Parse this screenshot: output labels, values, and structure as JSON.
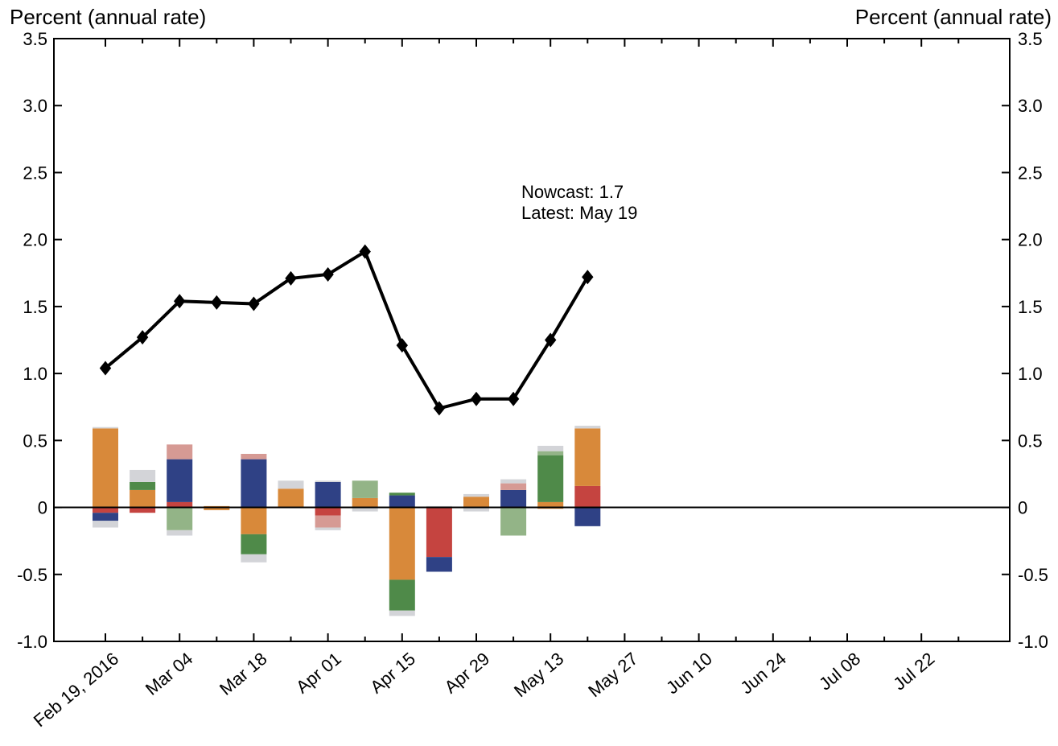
{
  "chart_data": {
    "type": "bar",
    "left_axis_label": "Percent (annual rate)",
    "right_axis_label": "Percent (annual rate)",
    "ylim": [
      -1.0,
      3.5
    ],
    "yticks": [
      "3.5",
      "3.0",
      "2.5",
      "2.0",
      "1.5",
      "1.0",
      "0.5",
      "0",
      "-0.5",
      "-1.0"
    ],
    "ytick_values": [
      3.5,
      3.0,
      2.5,
      2.0,
      1.5,
      1.0,
      0.5,
      0,
      -0.5,
      -1.0
    ],
    "x_tick_labels": [
      "Feb 19, 2016",
      "Mar 04",
      "Mar 18",
      "Apr 01",
      "Apr 15",
      "Apr 29",
      "May 13",
      "May 27",
      "Jun 10",
      "Jun 24",
      "Jul 08",
      "Jul 22"
    ],
    "week_count": 24,
    "annotation": {
      "line1": "Nowcast:  1.7",
      "line2": "Latest: May 19"
    },
    "colors": {
      "orange": "#d8893a",
      "navy": "#2f4185",
      "red": "#c54440",
      "pink": "#d69a94",
      "green": "#4f8a49",
      "lightgreen": "#93b487",
      "gray": "#d3d4d8",
      "line": "#000000"
    },
    "nowcast_line": [
      1.04,
      1.27,
      1.54,
      1.53,
      1.52,
      1.71,
      1.74,
      1.91,
      1.21,
      0.74,
      0.81,
      0.81,
      1.25,
      1.72
    ],
    "stacked_bars": [
      {
        "pos": [
          [
            "orange",
            0.59
          ],
          [
            "gray",
            0.01
          ]
        ],
        "neg": [
          [
            "red",
            -0.04
          ],
          [
            "navy",
            -0.06
          ],
          [
            "gray",
            -0.05
          ]
        ]
      },
      {
        "pos": [
          [
            "orange",
            0.13
          ],
          [
            "green",
            0.06
          ],
          [
            "gray",
            0.09
          ]
        ],
        "neg": [
          [
            "red",
            -0.04
          ]
        ]
      },
      {
        "pos": [
          [
            "red",
            0.04
          ],
          [
            "navy",
            0.32
          ],
          [
            "pink",
            0.11
          ]
        ],
        "neg": [
          [
            "lightgreen",
            -0.17
          ],
          [
            "gray",
            -0.04
          ]
        ]
      },
      {
        "pos": [
          [
            "orange",
            0.01
          ]
        ],
        "neg": [
          [
            "orange",
            -0.02
          ]
        ]
      },
      {
        "pos": [
          [
            "navy",
            0.36
          ],
          [
            "pink",
            0.04
          ]
        ],
        "neg": [
          [
            "orange",
            -0.2
          ],
          [
            "green",
            -0.15
          ],
          [
            "gray",
            -0.06
          ]
        ]
      },
      {
        "pos": [
          [
            "orange",
            0.14
          ],
          [
            "gray",
            0.06
          ]
        ],
        "neg": []
      },
      {
        "pos": [
          [
            "navy",
            0.19
          ],
          [
            "gray",
            0.01
          ]
        ],
        "neg": [
          [
            "red",
            -0.06
          ],
          [
            "pink",
            -0.09
          ],
          [
            "gray",
            -0.02
          ]
        ]
      },
      {
        "pos": [
          [
            "orange",
            0.07
          ],
          [
            "lightgreen",
            0.13
          ]
        ],
        "neg": [
          [
            "gray",
            -0.03
          ]
        ]
      },
      {
        "pos": [
          [
            "navy",
            0.09
          ],
          [
            "green",
            0.02
          ]
        ],
        "neg": [
          [
            "orange",
            -0.54
          ],
          [
            "green",
            -0.23
          ],
          [
            "gray",
            -0.04
          ]
        ]
      },
      {
        "pos": [
          [
            "gray",
            0.01
          ]
        ],
        "neg": [
          [
            "red",
            -0.37
          ],
          [
            "navy",
            -0.11
          ]
        ]
      },
      {
        "pos": [
          [
            "orange",
            0.08
          ],
          [
            "gray",
            0.02
          ]
        ],
        "neg": [
          [
            "gray",
            -0.03
          ]
        ]
      },
      {
        "pos": [
          [
            "navy",
            0.13
          ],
          [
            "pink",
            0.05
          ],
          [
            "gray",
            0.03
          ]
        ],
        "neg": [
          [
            "lightgreen",
            -0.21
          ]
        ]
      },
      {
        "pos": [
          [
            "orange",
            0.04
          ],
          [
            "green",
            0.35
          ],
          [
            "lightgreen",
            0.03
          ],
          [
            "gray",
            0.04
          ]
        ],
        "neg": [
          [
            "orange",
            -0.01
          ]
        ]
      },
      {
        "pos": [
          [
            "red",
            0.16
          ],
          [
            "orange",
            0.43
          ],
          [
            "gray",
            0.02
          ]
        ],
        "neg": [
          [
            "navy",
            -0.14
          ]
        ]
      }
    ]
  }
}
